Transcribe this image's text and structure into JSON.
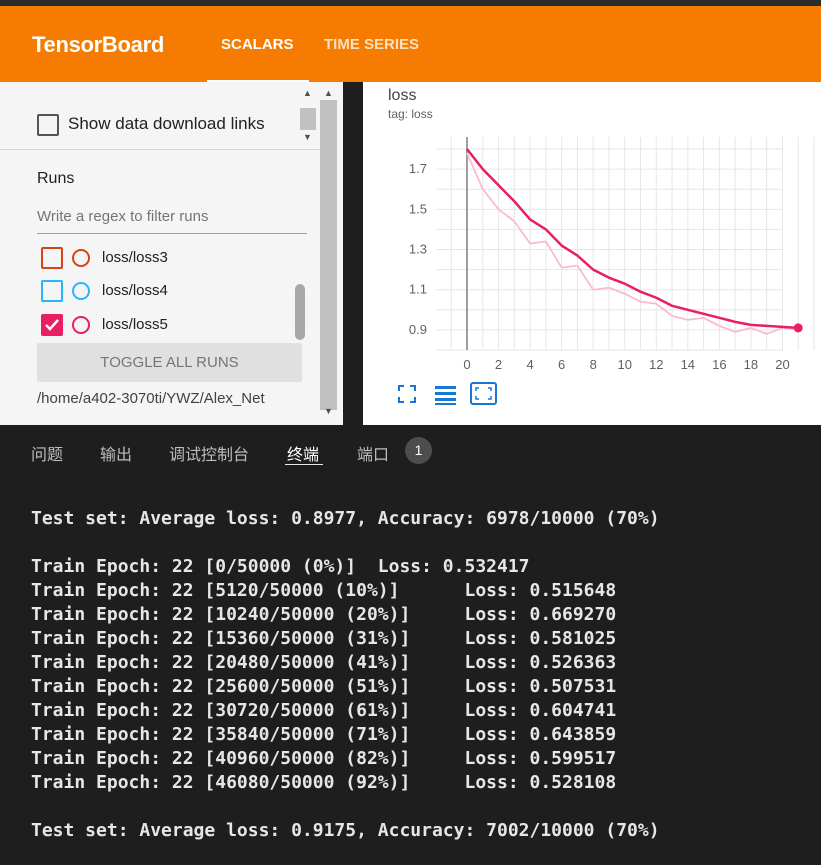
{
  "app": {
    "brand": "TensorBoard",
    "tabs": [
      {
        "label": "SCALARS",
        "active": true
      },
      {
        "label": "TIME SERIES",
        "active": false
      }
    ],
    "accent": "#f57c00"
  },
  "sidebar": {
    "show_download_label": "Show data download links",
    "runs_title": "Runs",
    "regex_placeholder": "Write a regex to filter runs",
    "runs": [
      {
        "label": "loss/loss3",
        "color": "#d84315",
        "checked": false
      },
      {
        "label": "loss/loss4",
        "color": "#29b6f6",
        "checked": false
      },
      {
        "label": "loss/loss5",
        "color": "#e91e63",
        "checked": true
      }
    ],
    "toggle_label": "TOGGLE ALL RUNS",
    "logdir": "/home/a402-3070ti/YWZ/Alex_Net"
  },
  "chart": {
    "title": "loss",
    "tag": "tag: loss",
    "icons": [
      "fullscreen-icon",
      "data-table-icon",
      "fit-domain-icon"
    ]
  },
  "chart_data": {
    "type": "line",
    "xlim": [
      0,
      22
    ],
    "ylim": [
      0.8,
      1.86
    ],
    "xticks": [
      0,
      2,
      4,
      6,
      8,
      10,
      12,
      14,
      16,
      18,
      20
    ],
    "yticks": [
      0.9,
      1.1,
      1.3,
      1.5,
      1.7
    ],
    "series": [
      {
        "name": "loss/loss5",
        "color": "#e91e63",
        "smoothed": true,
        "x": [
          0,
          1,
          2,
          3,
          4,
          5,
          6,
          7,
          8,
          9,
          10,
          11,
          12,
          13,
          14,
          15,
          16,
          17,
          18,
          19,
          20,
          21
        ],
        "y": [
          1.8,
          1.7,
          1.62,
          1.54,
          1.45,
          1.4,
          1.32,
          1.27,
          1.2,
          1.16,
          1.13,
          1.09,
          1.06,
          1.02,
          1.0,
          0.98,
          0.96,
          0.94,
          0.925,
          0.92,
          0.915,
          0.91
        ]
      },
      {
        "name": "loss/loss5 (raw)",
        "color": "#f8bbd0",
        "smoothed": false,
        "x": [
          0,
          1,
          2,
          3,
          4,
          5,
          6,
          7,
          8,
          9,
          10,
          11,
          12,
          13,
          14,
          15,
          16,
          17,
          18,
          19,
          20,
          21
        ],
        "y": [
          1.78,
          1.6,
          1.5,
          1.44,
          1.33,
          1.34,
          1.21,
          1.22,
          1.1,
          1.11,
          1.08,
          1.04,
          1.03,
          0.97,
          0.95,
          0.96,
          0.92,
          0.89,
          0.91,
          0.88,
          0.91,
          0.9
        ]
      }
    ]
  },
  "terminal": {
    "tabs": [
      {
        "label": "问题",
        "active": false
      },
      {
        "label": "输出",
        "active": false
      },
      {
        "label": "调试控制台",
        "active": false
      },
      {
        "label": "终端",
        "active": true
      },
      {
        "label": "端口",
        "active": false
      }
    ],
    "ports_badge": "1",
    "lines": [
      "Test set: Average loss: 0.8977, Accuracy: 6978/10000 (70%)",
      "",
      "Train Epoch: 22 [0/50000 (0%)]  Loss: 0.532417",
      "Train Epoch: 22 [5120/50000 (10%)]      Loss: 0.515648",
      "Train Epoch: 22 [10240/50000 (20%)]     Loss: 0.669270",
      "Train Epoch: 22 [15360/50000 (31%)]     Loss: 0.581025",
      "Train Epoch: 22 [20480/50000 (41%)]     Loss: 0.526363",
      "Train Epoch: 22 [25600/50000 (51%)]     Loss: 0.507531",
      "Train Epoch: 22 [30720/50000 (61%)]     Loss: 0.604741",
      "Train Epoch: 22 [35840/50000 (71%)]     Loss: 0.643859",
      "Train Epoch: 22 [40960/50000 (82%)]     Loss: 0.599517",
      "Train Epoch: 22 [46080/50000 (92%)]     Loss: 0.528108",
      "",
      "Test set: Average loss: 0.9175, Accuracy: 7002/10000 (70%)"
    ]
  }
}
